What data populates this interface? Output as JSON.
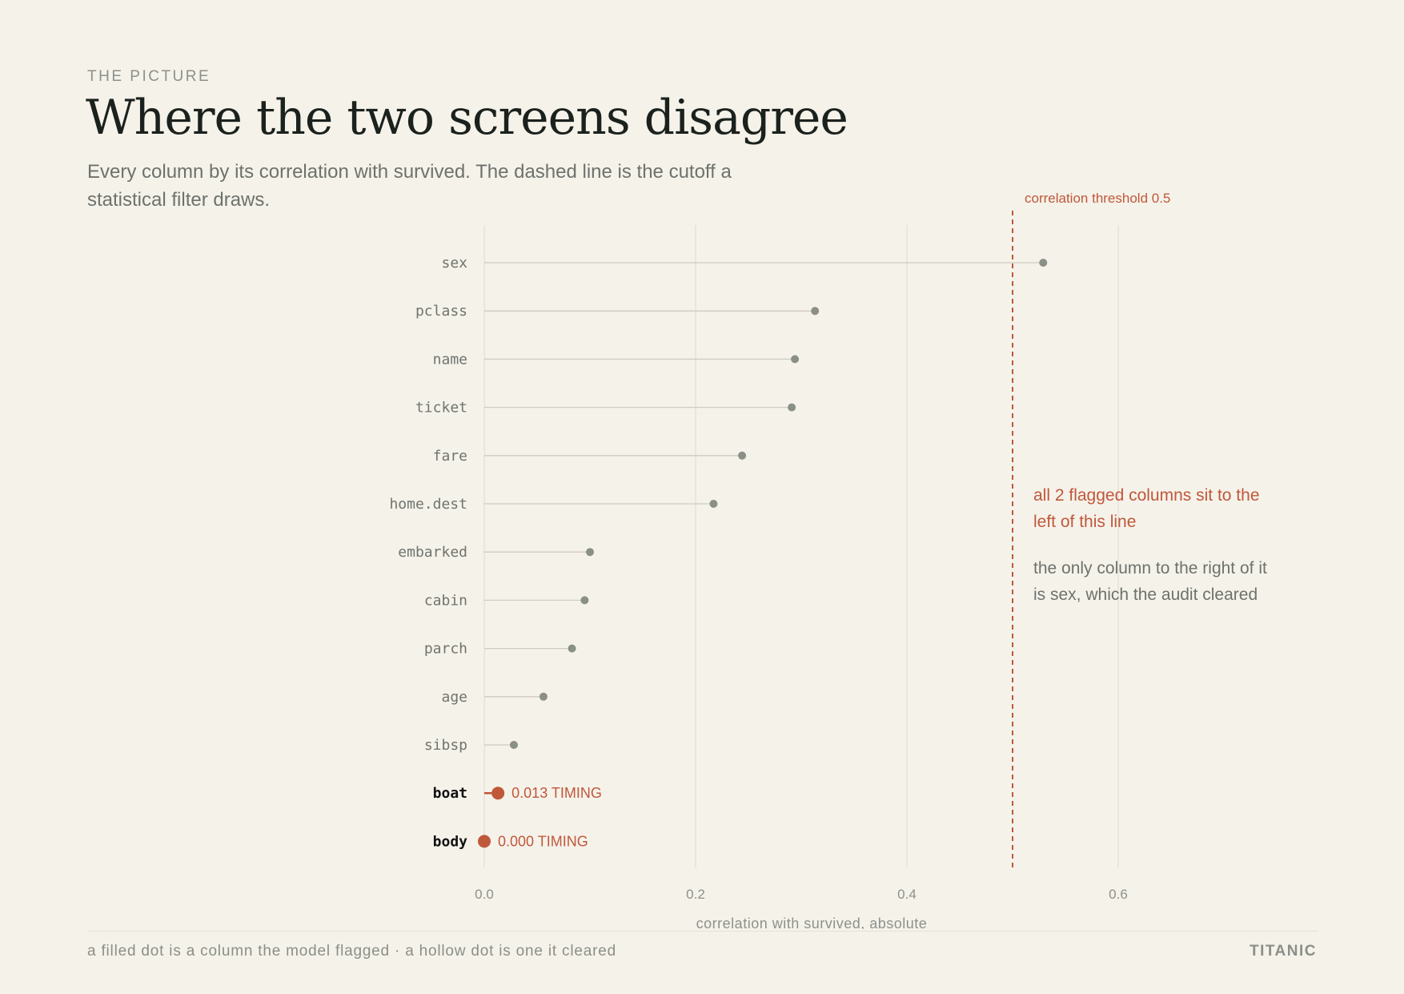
{
  "header": {
    "eyebrow": "THE PICTURE",
    "title": "Where the two screens disagree",
    "subtitle": "Every column by its correlation with survived. The dashed line is the cutoff a statistical filter draws."
  },
  "annotations": {
    "threshold_label": "correlation threshold 0.5",
    "flagged_note": "all 2 flagged columns sit to the left of this line",
    "cleared_note": "the only column to the right of it is sex, which the audit cleared"
  },
  "footer": {
    "legend_note": "a filled dot is a column the model flagged · a hollow dot is one it cleared",
    "brand": "TITANIC"
  },
  "colors": {
    "background": "#f5f2ea",
    "accent": "#c0583a",
    "muted_dot": "#8a8f87",
    "grid": "#e2dfd6"
  },
  "chart_data": {
    "type": "lollipop",
    "xlabel": "correlation with survived, absolute",
    "xlim": [
      0,
      0.7
    ],
    "xticks": [
      "0.0",
      "0.2",
      "0.4",
      "0.6"
    ],
    "grid": true,
    "threshold": 0.5,
    "rows": [
      {
        "name": "sex",
        "value": 0.529,
        "flagged": false
      },
      {
        "name": "pclass",
        "value": 0.313,
        "flagged": false
      },
      {
        "name": "name",
        "value": 0.294,
        "flagged": false
      },
      {
        "name": "ticket",
        "value": 0.291,
        "flagged": false
      },
      {
        "name": "fare",
        "value": 0.244,
        "flagged": false
      },
      {
        "name": "home.dest",
        "value": 0.217,
        "flagged": false
      },
      {
        "name": "embarked",
        "value": 0.1,
        "flagged": false
      },
      {
        "name": "cabin",
        "value": 0.095,
        "flagged": false
      },
      {
        "name": "parch",
        "value": 0.083,
        "flagged": false
      },
      {
        "name": "age",
        "value": 0.056,
        "flagged": false
      },
      {
        "name": "sibsp",
        "value": 0.028,
        "flagged": false
      },
      {
        "name": "boat",
        "value": 0.013,
        "flagged": true,
        "label": "0.013 TIMING"
      },
      {
        "name": "body",
        "value": 0.0,
        "flagged": true,
        "label": "0.000 TIMING"
      }
    ]
  }
}
